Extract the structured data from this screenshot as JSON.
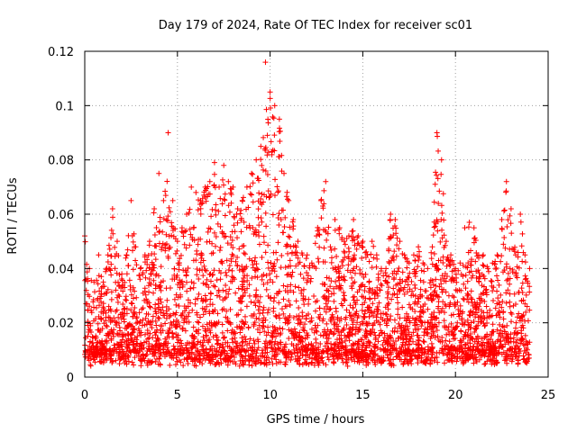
{
  "chart_data": {
    "type": "scatter",
    "title": "Day 179 of 2024, Rate Of TEC Index for receiver sc01",
    "xlabel": "GPS time / hours",
    "ylabel": "ROTI / TECUs",
    "xlim": [
      0,
      25
    ],
    "ylim": [
      0,
      0.12
    ],
    "xticks": [
      0,
      5,
      10,
      15,
      20,
      25
    ],
    "yticks": [
      0,
      0.02,
      0.04,
      0.06,
      0.08,
      0.1,
      0.12
    ],
    "xtick_labels": [
      "0",
      "5",
      "10",
      "15",
      "20",
      "25"
    ],
    "ytick_labels": [
      "0",
      "0.02",
      "0.04",
      "0.06",
      "0.08",
      "0.1",
      "0.12"
    ],
    "grid": true,
    "marker": "+",
    "color": "#ff0000",
    "series": [
      {
        "name": "ROTI",
        "note": "dense cloud of several thousand points; envelope of max ROTI per ~0.25 h bin (baseline ~0.005-0.03)",
        "envelope_x": [
          0.0,
          0.25,
          0.5,
          0.75,
          1.0,
          1.25,
          1.5,
          1.75,
          2.0,
          2.25,
          2.5,
          2.75,
          3.0,
          3.25,
          3.5,
          3.75,
          4.0,
          4.25,
          4.5,
          4.75,
          5.0,
          5.25,
          5.5,
          5.75,
          6.0,
          6.25,
          6.5,
          6.75,
          7.0,
          7.25,
          7.5,
          7.75,
          8.0,
          8.25,
          8.5,
          8.75,
          9.0,
          9.25,
          9.5,
          9.75,
          10.0,
          10.25,
          10.5,
          10.75,
          11.0,
          11.25,
          11.5,
          11.75,
          12.0,
          12.25,
          12.5,
          12.75,
          13.0,
          13.25,
          13.5,
          13.75,
          14.0,
          14.25,
          14.5,
          14.75,
          15.0,
          15.25,
          15.5,
          15.75,
          16.0,
          16.25,
          16.5,
          16.75,
          17.0,
          17.25,
          17.5,
          17.75,
          18.0,
          18.25,
          18.5,
          18.75,
          19.0,
          19.25,
          19.5,
          19.75,
          20.0,
          20.25,
          20.5,
          20.75,
          21.0,
          21.25,
          21.5,
          21.75,
          22.0,
          22.25,
          22.5,
          22.75,
          23.0,
          23.25,
          23.5,
          23.75,
          24.0
        ],
        "envelope_max": [
          0.052,
          0.04,
          0.035,
          0.045,
          0.035,
          0.045,
          0.062,
          0.05,
          0.038,
          0.045,
          0.065,
          0.048,
          0.04,
          0.045,
          0.05,
          0.062,
          0.075,
          0.065,
          0.09,
          0.065,
          0.05,
          0.055,
          0.06,
          0.07,
          0.068,
          0.065,
          0.07,
          0.072,
          0.079,
          0.07,
          0.078,
          0.072,
          0.07,
          0.062,
          0.065,
          0.07,
          0.075,
          0.08,
          0.085,
          0.116,
          0.105,
          0.1,
          0.095,
          0.075,
          0.065,
          0.058,
          0.05,
          0.045,
          0.045,
          0.042,
          0.052,
          0.065,
          0.072,
          0.048,
          0.058,
          0.055,
          0.05,
          0.052,
          0.058,
          0.052,
          0.05,
          0.045,
          0.05,
          0.045,
          0.04,
          0.04,
          0.06,
          0.058,
          0.05,
          0.045,
          0.042,
          0.045,
          0.048,
          0.042,
          0.04,
          0.048,
          0.09,
          0.08,
          0.05,
          0.045,
          0.04,
          0.042,
          0.055,
          0.057,
          0.055,
          0.045,
          0.045,
          0.04,
          0.042,
          0.045,
          0.058,
          0.072,
          0.062,
          0.045,
          0.06,
          0.045,
          0.04
        ]
      }
    ]
  }
}
